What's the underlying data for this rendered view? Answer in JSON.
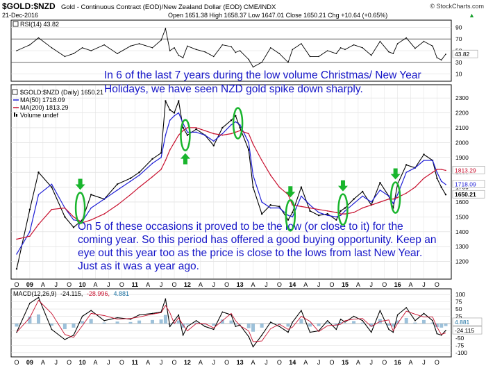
{
  "header": {
    "symbol": "$GOLD:$NZD",
    "description": "Gold - Continuous Contract (EOD)/New Zealand Dollar (EOD) CME/INDX",
    "brand": "© StockCharts.com",
    "date": "21-Dec-2016",
    "quote": "Open 1651.38  High 1658.37  Low 1647.01  Close 1650.21  Chg +10.64 (+0.65%)",
    "up_arrow": "▲"
  },
  "rsi": {
    "label": "RSI(14) 43.82",
    "ticks": [
      "90",
      "70",
      "50",
      "30",
      "10"
    ],
    "tick_values": [
      90,
      70,
      50,
      30,
      10
    ],
    "last_tag": "43.82",
    "last_value": 43.82,
    "overbought": 70,
    "oversold": 30
  },
  "price_panel": {
    "legend": [
      {
        "text": "$GOLD:$NZD (Daily) 1650.21",
        "color": "#000000"
      },
      {
        "text": "MA(50) 1718.09",
        "color": "#1f1fd6"
      },
      {
        "text": "MA(200) 1813.29",
        "color": "#c8102e"
      },
      {
        "text": "Volume undef",
        "color": "#000000"
      }
    ],
    "y_ticks": [
      "2300",
      "2200",
      "2100",
      "2000",
      "1900",
      "1800",
      "1700",
      "1600",
      "1500",
      "1400",
      "1300",
      "1200"
    ],
    "y_tick_values": [
      2300,
      2200,
      2100,
      2000,
      1900,
      1800,
      1700,
      1600,
      1500,
      1400,
      1300,
      1200
    ],
    "tags": [
      {
        "text": "1813.29",
        "value": 1813.29,
        "bg": "#ffffff",
        "color": "#c8102e"
      },
      {
        "text": "1718.09",
        "value": 1718.09,
        "bg": "#ffffff",
        "color": "#1f1fd6"
      },
      {
        "text": "1650.21",
        "value": 1650.21,
        "bg": "#ffffff",
        "color": "#000000"
      }
    ]
  },
  "annotations": {
    "top": "In 6 of the last 7 years during the low volume Christmas/ New Year Holidays, we have seen NZD gold spike down sharply.",
    "bottom": "On 5 of these occasions it proved to be the low (or close to it) for the coming year. So this period has offered a good buying opportunity. Keep an eye out this year too as the price is close to the lows from last New Year. Just as it was a year ago.",
    "text_color": "#1515c8",
    "marker_color": "#19b52d"
  },
  "x_axis": {
    "labels": [
      "O",
      "09",
      "A",
      "J",
      "O",
      "10",
      "A",
      "J",
      "O",
      "11",
      "A",
      "J",
      "O",
      "12",
      "A",
      "J",
      "O",
      "13",
      "A",
      "J",
      "O",
      "14",
      "A",
      "J",
      "O",
      "15",
      "A",
      "J",
      "O",
      "16",
      "A",
      "J",
      "O"
    ],
    "label_dates": [
      "2008-10",
      "2009-01",
      "2009-04",
      "2009-07",
      "2009-10",
      "2010-01",
      "2010-04",
      "2010-07",
      "2010-10",
      "2011-01",
      "2011-04",
      "2011-07",
      "2011-10",
      "2012-01",
      "2012-04",
      "2012-07",
      "2012-10",
      "2013-01",
      "2013-04",
      "2013-07",
      "2013-10",
      "2014-01",
      "2014-04",
      "2014-07",
      "2014-10",
      "2015-01",
      "2015-04",
      "2015-07",
      "2015-10",
      "2016-01",
      "2016-04",
      "2016-07",
      "2016-10"
    ]
  },
  "macd": {
    "label": "MACD(12,26,9)",
    "macd_value": "-24.115,",
    "signal_value": "-28.996,",
    "hist_value": "4.881",
    "ticks": [
      "100",
      "75",
      "50",
      "25",
      "0",
      "-25",
      "-50",
      "-75",
      "-100"
    ],
    "tick_values": [
      100,
      75,
      50,
      25,
      0,
      -25,
      -50,
      -75,
      -100
    ],
    "tags": [
      {
        "text": "4.881",
        "value": 4.881,
        "bg": "#ffffff",
        "color": "#1a6fa0"
      },
      {
        "text": "-24.115",
        "value": -24.115,
        "bg": "#ffffff",
        "color": "#000000"
      }
    ]
  },
  "chart_data": {
    "type": "line",
    "title": "$GOLD:$NZD",
    "x": [
      "2008-10",
      "2009-01",
      "2009-03",
      "2009-06",
      "2009-09",
      "2009-11",
      "2010-01",
      "2010-03",
      "2010-06",
      "2010-09",
      "2010-12",
      "2011-02",
      "2011-05",
      "2011-07",
      "2011-08",
      "2011-09",
      "2011-10",
      "2011-11",
      "2011-12",
      "2012-01",
      "2012-03",
      "2012-05",
      "2012-07",
      "2012-09",
      "2012-11",
      "2012-12",
      "2013-01",
      "2013-03",
      "2013-04",
      "2013-06",
      "2013-08",
      "2013-10",
      "2013-12",
      "2014-01",
      "2014-03",
      "2014-05",
      "2014-07",
      "2014-09",
      "2014-11",
      "2014-12",
      "2015-01",
      "2015-03",
      "2015-05",
      "2015-07",
      "2015-09",
      "2015-11",
      "2015-12",
      "2016-01",
      "2016-03",
      "2016-05",
      "2016-07",
      "2016-09",
      "2016-10",
      "2016-11",
      "2016-12"
    ],
    "series": [
      {
        "name": "$GOLD:$NZD (Daily)",
        "values": [
          1150,
          1550,
          1800,
          1700,
          1500,
          1430,
          1480,
          1650,
          1620,
          1720,
          1760,
          1800,
          1890,
          1930,
          2280,
          2220,
          2200,
          2280,
          2100,
          2050,
          2090,
          2050,
          1980,
          2100,
          2150,
          2180,
          2100,
          1950,
          1700,
          1520,
          1580,
          1570,
          1480,
          1530,
          1700,
          1540,
          1510,
          1520,
          1480,
          1540,
          1560,
          1620,
          1670,
          1580,
          1730,
          1640,
          1560,
          1720,
          1850,
          1830,
          1920,
          1880,
          1760,
          1700,
          1650
        ]
      },
      {
        "name": "MA(50)",
        "values": [
          1250,
          1400,
          1650,
          1720,
          1560,
          1480,
          1470,
          1560,
          1620,
          1680,
          1740,
          1780,
          1860,
          1900,
          2050,
          2150,
          2180,
          2200,
          2130,
          2070,
          2070,
          2050,
          2010,
          2060,
          2120,
          2140,
          2120,
          2000,
          1780,
          1600,
          1560,
          1560,
          1510,
          1500,
          1640,
          1580,
          1530,
          1510,
          1500,
          1510,
          1540,
          1590,
          1640,
          1600,
          1680,
          1640,
          1590,
          1650,
          1800,
          1830,
          1880,
          1880,
          1800,
          1740,
          1718
        ]
      },
      {
        "name": "MA(200)",
        "values": [
          1350,
          1370,
          1450,
          1550,
          1560,
          1500,
          1460,
          1480,
          1520,
          1580,
          1650,
          1700,
          1770,
          1820,
          1880,
          1950,
          2000,
          2050,
          2080,
          2100,
          2100,
          2080,
          2060,
          2050,
          2060,
          2070,
          2080,
          2060,
          1990,
          1880,
          1780,
          1700,
          1650,
          1580,
          1570,
          1560,
          1550,
          1540,
          1530,
          1520,
          1520,
          1530,
          1560,
          1580,
          1600,
          1620,
          1620,
          1630,
          1660,
          1700,
          1760,
          1800,
          1820,
          1820,
          1813
        ]
      }
    ],
    "ylim": [
      1100,
      2380
    ],
    "ylabel": "",
    "grid": true,
    "rsi_values": [
      50,
      60,
      72,
      55,
      40,
      45,
      55,
      50,
      60,
      45,
      58,
      62,
      55,
      68,
      88,
      50,
      55,
      42,
      38,
      58,
      52,
      48,
      40,
      60,
      57,
      47,
      50,
      35,
      22,
      30,
      55,
      45,
      30,
      52,
      62,
      40,
      40,
      50,
      45,
      55,
      52,
      60,
      55,
      42,
      66,
      48,
      45,
      62,
      72,
      54,
      66,
      58,
      38,
      34,
      44
    ],
    "macd_values": [
      -30,
      70,
      90,
      -20,
      -55,
      -40,
      25,
      45,
      10,
      20,
      15,
      30,
      35,
      40,
      85,
      -10,
      10,
      30,
      -40,
      -10,
      10,
      -10,
      -20,
      40,
      30,
      -10,
      -5,
      -45,
      -80,
      -40,
      5,
      -10,
      -30,
      5,
      45,
      -30,
      -25,
      10,
      -20,
      15,
      5,
      25,
      10,
      -30,
      45,
      -20,
      -30,
      30,
      55,
      10,
      35,
      10,
      -35,
      -40,
      -24
    ]
  }
}
